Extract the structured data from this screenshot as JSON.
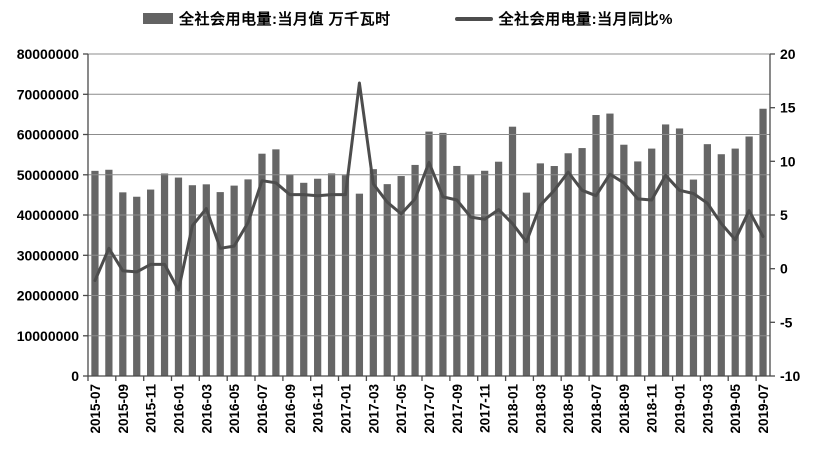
{
  "legend": [
    {
      "label": "全社会用电量:当月值 万千瓦时",
      "type": "bar"
    },
    {
      "label": "全社会用电量:当月同比%",
      "type": "line"
    }
  ],
  "chart_data": {
    "type": "bar+line combo",
    "categories": [
      "2015-07",
      "2015-08",
      "2015-09",
      "2015-10",
      "2015-11",
      "2015-12",
      "2016-01",
      "2016-02",
      "2016-03",
      "2016-04",
      "2016-05",
      "2016-06",
      "2016-07",
      "2016-08",
      "2016-09",
      "2016-10",
      "2016-11",
      "2016-12",
      "2017-01",
      "2017-02",
      "2017-03",
      "2017-04",
      "2017-05",
      "2017-06",
      "2017-07",
      "2017-08",
      "2017-09",
      "2017-10",
      "2017-11",
      "2017-12",
      "2018-01",
      "2018-02",
      "2018-03",
      "2018-04",
      "2018-05",
      "2018-06",
      "2018-07",
      "2018-08",
      "2018-09",
      "2018-10",
      "2018-11",
      "2018-12",
      "2019-01",
      "2019-02",
      "2019-03",
      "2019-04",
      "2019-05",
      "2019-06",
      "2019-07"
    ],
    "x_tick_labels": [
      "2015-07",
      "2015-09",
      "2015-11",
      "2016-01",
      "2016-03",
      "2016-05",
      "2016-07",
      "2016-09",
      "2016-11",
      "2017-01",
      "2017-03",
      "2017-05",
      "2017-07",
      "2017-09",
      "2017-11",
      "2018-01",
      "2018-03",
      "2018-05",
      "2018-07",
      "2018-09",
      "2018-11",
      "2019-01",
      "2019-03",
      "2019-05",
      "2019-07"
    ],
    "series": [
      {
        "name": "全社会用电量:当月值 万千瓦时",
        "type": "bar",
        "axis": "left",
        "values": [
          50970000,
          51240000,
          45630000,
          44540000,
          46320000,
          50310000,
          49300000,
          47400000,
          47620000,
          45690000,
          47300000,
          48850000,
          55230000,
          56310000,
          49990000,
          48000000,
          49010000,
          50330000,
          49900000,
          45300000,
          51390000,
          47670000,
          49680000,
          52440000,
          60720000,
          60400000,
          52190000,
          50100000,
          50990000,
          53240000,
          61940000,
          45560000,
          52830000,
          52170000,
          55340000,
          56630000,
          64840000,
          65200000,
          57460000,
          53310000,
          56500000,
          62500000,
          61500000,
          48800000,
          57600000,
          55100000,
          56500000,
          59500000,
          66400000
        ]
      },
      {
        "name": "全社会用电量:当月同比%",
        "type": "line",
        "axis": "right",
        "values": [
          -1.1,
          1.9,
          -0.2,
          -0.3,
          0.4,
          0.4,
          -2.0,
          4.0,
          5.6,
          1.9,
          2.1,
          4.3,
          8.2,
          8.0,
          6.9,
          6.9,
          6.8,
          6.9,
          6.9,
          17.3,
          7.9,
          6.2,
          5.1,
          6.5,
          9.9,
          6.7,
          6.4,
          4.8,
          4.6,
          5.5,
          4.2,
          2.5,
          5.9,
          7.3,
          9.0,
          7.3,
          6.8,
          8.8,
          8.0,
          6.5,
          6.4,
          8.7,
          7.3,
          7.0,
          6.1,
          4.2,
          2.7,
          5.4,
          3.0
        ]
      }
    ],
    "left_axis": {
      "min": 0,
      "max": 80000000,
      "step": 10000000,
      "tick_labels": [
        "0",
        "10000000",
        "20000000",
        "30000000",
        "40000000",
        "50000000",
        "60000000",
        "70000000",
        "80000000"
      ]
    },
    "right_axis": {
      "min": -10,
      "max": 20,
      "step": 5,
      "tick_labels": [
        "-10",
        "-5",
        "0",
        "5",
        "10",
        "15",
        "20"
      ]
    },
    "grid": true,
    "legend_position": "top",
    "colors": {
      "bar": "#666666",
      "line": "#4d4d4d",
      "grid": "#8c8c8c",
      "axis": "#4a4a4a",
      "text": "#000000"
    }
  }
}
